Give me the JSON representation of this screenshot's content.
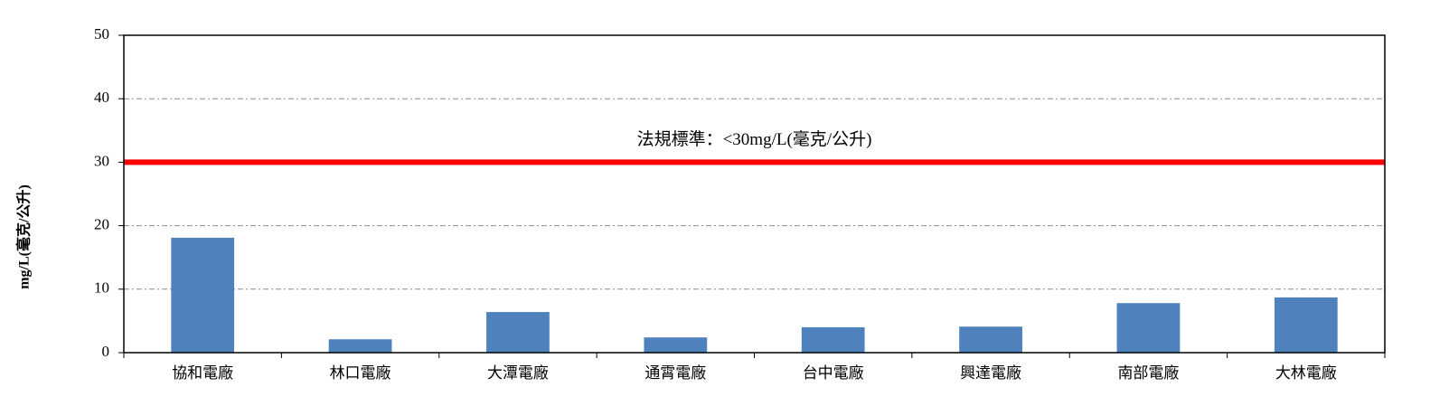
{
  "chart_data": {
    "type": "bar",
    "y_label": "mg/L(毫克/公升)",
    "categories": [
      "協和電廠",
      "林口電廠",
      "大潭電廠",
      "通霄電廠",
      "台中電廠",
      "興達電廠",
      "南部電廠",
      "大林電廠"
    ],
    "values": [
      18.1,
      2.1,
      6.4,
      2.4,
      4.0,
      4.1,
      7.8,
      8.7
    ],
    "color": "#4f81bd",
    "ylim": [
      0,
      50
    ],
    "yticks": [
      0,
      10,
      20,
      30,
      40,
      50
    ],
    "grid": true,
    "threshold": {
      "value": 30,
      "label": "法規標準：<30mg/L(毫克/公升)",
      "color": "#ff0000"
    }
  }
}
